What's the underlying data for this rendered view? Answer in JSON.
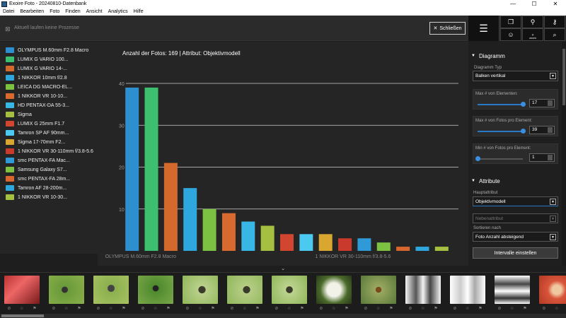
{
  "window": {
    "title": "Exoire Foto - 20240810-Datenbank",
    "minimize": "—",
    "maximize": "☐",
    "close": "✕"
  },
  "menu": [
    "Datei",
    "Bearbeiten",
    "Foto",
    "Finden",
    "Ansicht",
    "Analytics",
    "Hilfe"
  ],
  "topbar": {
    "status": "Aktuell laufen keine Prozesse",
    "close_label": "Schließen"
  },
  "toolbar": {
    "zoom_label": "zoom"
  },
  "chart_data": {
    "type": "bar",
    "title": "Anzahl der Fotos: 169 | Attribut: Objektivmodell",
    "categories": [
      "OLYMPUS M.60mm F2.8 Macro",
      "LUMIX G VARIO 100...",
      "LUMIX G VARIO 14-...",
      "1 NIKKOR 10mm f/2.8",
      "LEICA DG MACRO-EL...",
      "1 NIKKOR VR 10-10...",
      "HD PENTAX-DA 55-3...",
      "Sigma",
      "LUMIX G 25mm F1.7",
      "Tamron SP AF 90mm...",
      "Sigma 17-70mm F2...",
      "1 NIKKOR VR 30-110mm f/3.8-5.6",
      "smc PENTAX-FA Mac...",
      "Samsung Galaxy S7...",
      "smc PENTAX-FA 28m...",
      "Tamron AF 28-200m...",
      "1 NIKKOR VR 10-30..."
    ],
    "values": [
      39,
      39,
      21,
      15,
      10,
      9,
      7,
      6,
      4,
      4,
      4,
      3,
      3,
      2,
      1,
      1,
      1
    ],
    "colors": [
      "#2e8fce",
      "#3cbf6e",
      "#d4692e",
      "#2ea7de",
      "#7cc142",
      "#d86a30",
      "#38b6e6",
      "#a5c040",
      "#d2452e",
      "#4cc9f0",
      "#d9a630",
      "#c93a2c",
      "#2e9ad8",
      "#7cc142",
      "#d8662e",
      "#2ea7de",
      "#a5c040"
    ],
    "ylim": [
      0,
      40
    ],
    "yticks": [
      10,
      20,
      30,
      40
    ],
    "xtick_labels": [
      "OLYMPUS M.60mm F2.8 Macro",
      "1 NIKKOR VR 30-110mm f/3.8-5.6"
    ],
    "grid": true,
    "legend": "left"
  },
  "panel": {
    "diagramm_title": "Diagramm",
    "diagramm_typ_label": "Diagramm Typ",
    "diagramm_typ_value": "Balken vertikal",
    "max_elements_label": "Max # von Elementen:",
    "max_elements_value": "17",
    "max_elements_fraction": 1.0,
    "max_photos_label": "Max # von Fotos pro Element:",
    "max_photos_value": "39",
    "max_photos_fraction": 1.0,
    "min_photos_label": "Min # von Fotos pro Element:",
    "min_photos_value": "1",
    "min_photos_fraction": 0.0,
    "attribute_title": "Attribute",
    "haupt_label": "Hauptattribut",
    "haupt_value": "Objektivmodell",
    "neben_placeholder": "Nebenattribut",
    "sort_label": "Sortieren nach",
    "sort_value": "Foto Anzahl absteigend",
    "interval_button": "Intervalle einstellen"
  },
  "filmstrip": [
    {
      "name": "thumb-ladybugs",
      "color": "linear-gradient(135deg,#b33 0%,#e66 40%,#7a1a1a 100%)"
    },
    {
      "name": "thumb-fly-1",
      "color": "radial-gradient(circle at 45% 50%,#333 0 12%,#6a9a3a 14%,#8ab04a 100%)"
    },
    {
      "name": "thumb-fly-2",
      "color": "radial-gradient(circle at 50% 45%,#444 0 14%,#8cb04e 16%,#a7c262 100%)"
    },
    {
      "name": "thumb-fly-3",
      "color": "radial-gradient(circle at 50% 45%,#222 0 12%,#4f8a2e 14%,#7aa84a 100%)"
    },
    {
      "name": "thumb-fly-4",
      "color": "radial-gradient(circle at 55% 50%,#3a3a2a 0 14%,#b9d08a 16%,#8fb65a 100%)"
    },
    {
      "name": "thumb-fly-5",
      "color": "radial-gradient(circle at 55% 50%,#3a3a2a 0 14%,#b5cd84 16%,#8fb65a 100%)"
    },
    {
      "name": "thumb-fly-6",
      "color": "radial-gradient(circle at 50% 50%,#3a3a2a 0 14%,#bcd38e 16%,#8fb65a 100%)"
    },
    {
      "name": "thumb-flowers",
      "color": "radial-gradient(circle at 50% 50%,#f2f2e8 0 30%,#4a6a2a 60%,#2a3a1a 100%)"
    },
    {
      "name": "thumb-spider",
      "color": "radial-gradient(circle at 50% 50%,#7a4a1a 0 12%,#9aa860 14%,#5a7a3a 100%)"
    },
    {
      "name": "thumb-batteries-1",
      "color": "linear-gradient(90deg,#f4f4f4 0%,#555 30%,#f4f4f4 50%,#444 70%,#f4f4f4 100%)"
    },
    {
      "name": "thumb-batteries-2",
      "color": "linear-gradient(90deg,#fff 0%,#ccc 30%,#fff 50%,#aaa 70%,#fff 100%)"
    },
    {
      "name": "thumb-parts",
      "color": "linear-gradient(180deg,#fff 0%,#444 30%,#fff 55%,#333 80%,#fff 100%)"
    },
    {
      "name": "thumb-red-objects",
      "color": "radial-gradient(circle at 50% 50%,#f0c8a0 0 20%,#d8553a 40%,#b23a26 100%)"
    }
  ]
}
